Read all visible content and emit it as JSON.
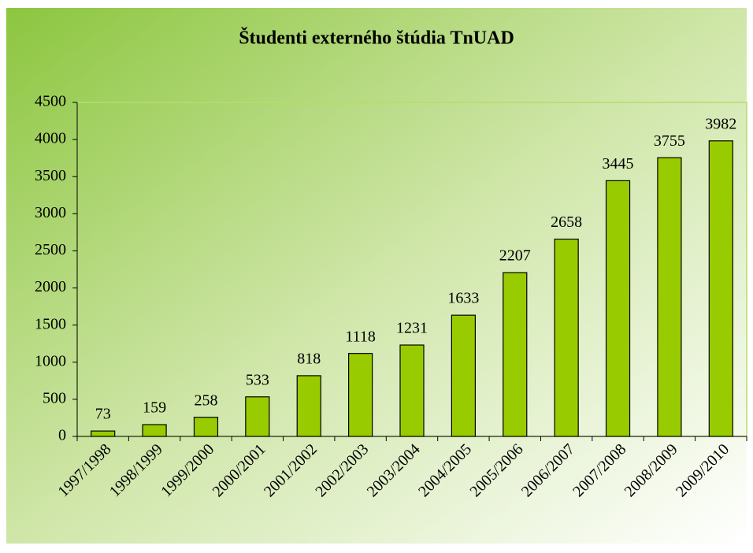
{
  "chart_data": {
    "type": "bar",
    "title": "Študenti externého štúdia TnUAD",
    "categories": [
      "1997/1998",
      "1998/1999",
      "1999/2000",
      "2000/2001",
      "2001/2002",
      "2002/2003",
      "2003/2004",
      "2004/2005",
      "2005/2006",
      "2006/2007",
      "2007/2008",
      "2008/2009",
      "2009/2010"
    ],
    "values": [
      73,
      159,
      258,
      533,
      818,
      1118,
      1231,
      1633,
      2207,
      2658,
      3445,
      3755,
      3982
    ],
    "color": "#99cc00",
    "ylim": [
      0,
      4500
    ],
    "yticks": [
      0,
      500,
      1000,
      1500,
      2000,
      2500,
      3000,
      3500,
      4000,
      4500
    ],
    "grid": false
  }
}
